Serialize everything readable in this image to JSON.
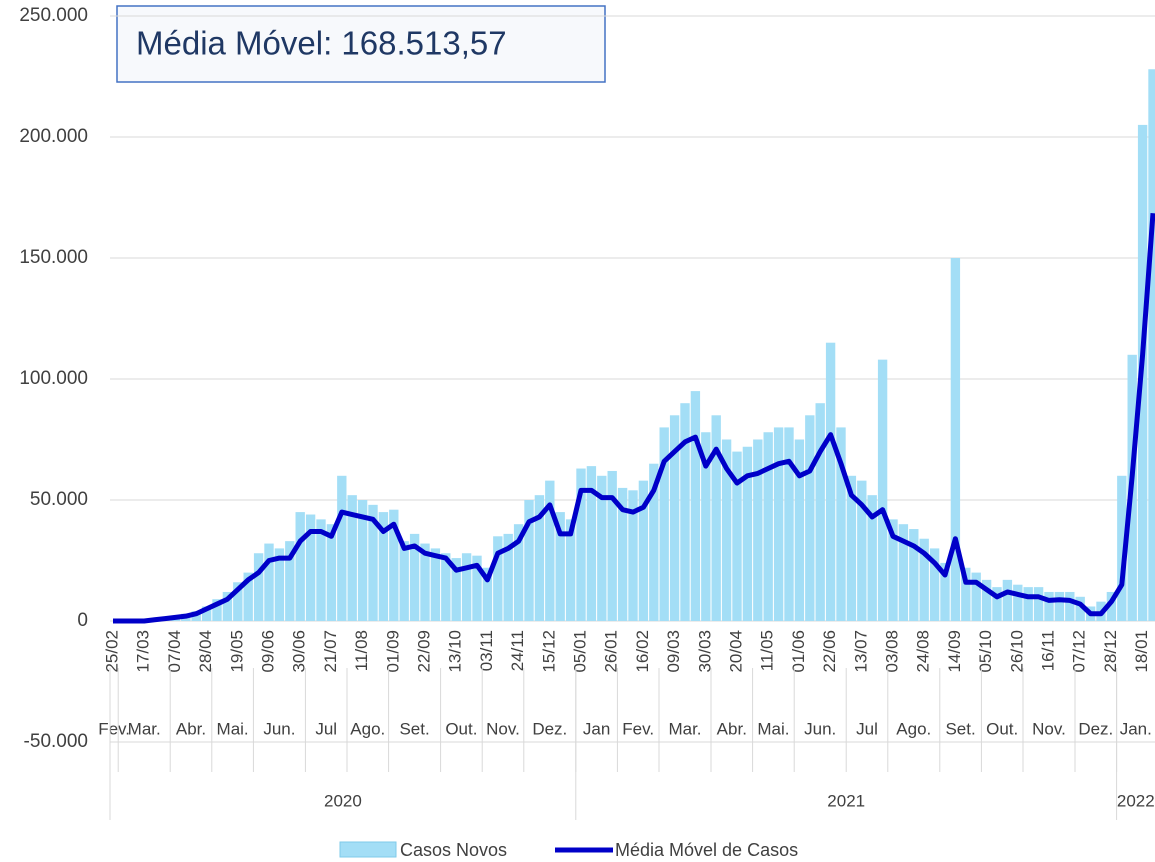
{
  "chart_data": {
    "type": "bar_line",
    "annotation": "Média Móvel: 168.513,57",
    "ylim": [
      -50000,
      250000
    ],
    "yticks": [
      {
        "value": -50000,
        "label": "-50.000"
      },
      0,
      {
        "value": 50000,
        "label": "50.000"
      },
      {
        "value": 100000,
        "label": "100.000"
      },
      {
        "value": 150000,
        "label": "150.000"
      },
      {
        "value": 200000,
        "label": "200.000"
      },
      {
        "value": 250000,
        "label": "250.000"
      }
    ],
    "grid": true,
    "categories": [
      "25/02",
      null,
      null,
      "17/03",
      null,
      null,
      "07/04",
      null,
      null,
      "28/04",
      null,
      null,
      "19/05",
      null,
      null,
      "09/06",
      null,
      null,
      "30/06",
      null,
      null,
      "21/07",
      null,
      null,
      "11/08",
      null,
      null,
      "01/09",
      null,
      null,
      "22/09",
      null,
      null,
      "13/10",
      null,
      null,
      "03/11",
      null,
      null,
      "24/11",
      null,
      null,
      "15/12",
      null,
      null,
      "05/01",
      null,
      null,
      "26/01",
      null,
      null,
      "16/02",
      null,
      null,
      "09/03",
      null,
      null,
      "30/03",
      null,
      null,
      "20/04",
      null,
      null,
      "11/05",
      null,
      null,
      "01/06",
      null,
      null,
      "22/06",
      null,
      null,
      "13/07",
      null,
      null,
      "03/08",
      null,
      null,
      "24/08",
      null,
      null,
      "14/09",
      null,
      null,
      "05/10",
      null,
      null,
      "26/10",
      null,
      null,
      "16/11",
      null,
      null,
      "07/12",
      null,
      null,
      "28/12",
      null,
      null,
      "18/01",
      null
    ],
    "months": [
      "Fev.",
      "Mar.",
      "Mar.",
      "Mar.",
      "Mar.",
      "Mar.",
      "Abr.",
      "Abr.",
      "Abr.",
      "Abr.",
      "Mai.",
      "Mai.",
      "Mai.",
      "Mai.",
      "Jun.",
      "Jun.",
      "Jun.",
      "Jun.",
      "Jun.",
      "Jul",
      "Jul",
      "Jul",
      "Jul",
      "Ago.",
      "Ago.",
      "Ago.",
      "Ago.",
      "Set.",
      "Set.",
      "Set.",
      "Set.",
      "Set.",
      "Out.",
      "Out.",
      "Out.",
      "Out.",
      "Nov.",
      "Nov.",
      "Nov.",
      "Nov.",
      "Dez.",
      "Dez.",
      "Dez.",
      "Dez.",
      "Dez.",
      "Jan",
      "Jan",
      "Jan",
      "Jan",
      "Fev.",
      "Fev.",
      "Fev.",
      "Fev.",
      "Mar.",
      "Mar.",
      "Mar.",
      "Mar.",
      "Mar.",
      "Abr.",
      "Abr.",
      "Abr.",
      "Abr.",
      "Mai.",
      "Mai.",
      "Mai.",
      "Mai.",
      "Jun.",
      "Jun.",
      "Jun.",
      "Jun.",
      "Jun.",
      "Jul",
      "Jul",
      "Jul",
      "Jul",
      "Ago.",
      "Ago.",
      "Ago.",
      "Ago.",
      "Ago.",
      "Set.",
      "Set.",
      "Set.",
      "Set.",
      "Out.",
      "Out.",
      "Out.",
      "Out.",
      "Nov.",
      "Nov.",
      "Nov.",
      "Nov.",
      "Nov.",
      "Dez.",
      "Dez.",
      "Dez.",
      "Dez.",
      "Jan.",
      "Jan.",
      "Jan.",
      "Jan."
    ],
    "years": [
      "2020",
      "2020",
      "2020",
      "2020",
      "2020",
      "2020",
      "2020",
      "2020",
      "2020",
      "2020",
      "2020",
      "2020",
      "2020",
      "2020",
      "2020",
      "2020",
      "2020",
      "2020",
      "2020",
      "2020",
      "2020",
      "2020",
      "2020",
      "2020",
      "2020",
      "2020",
      "2020",
      "2020",
      "2020",
      "2020",
      "2020",
      "2020",
      "2020",
      "2020",
      "2020",
      "2020",
      "2020",
      "2020",
      "2020",
      "2020",
      "2020",
      "2020",
      "2020",
      "2020",
      "2020",
      "2021",
      "2021",
      "2021",
      "2021",
      "2021",
      "2021",
      "2021",
      "2021",
      "2021",
      "2021",
      "2021",
      "2021",
      "2021",
      "2021",
      "2021",
      "2021",
      "2021",
      "2021",
      "2021",
      "2021",
      "2021",
      "2021",
      "2021",
      "2021",
      "2021",
      "2021",
      "2021",
      "2021",
      "2021",
      "2021",
      "2021",
      "2021",
      "2021",
      "2021",
      "2021",
      "2021",
      "2021",
      "2021",
      "2021",
      "2021",
      "2021",
      "2021",
      "2021",
      "2021",
      "2021",
      "2021",
      "2021",
      "2021",
      "2021",
      "2021",
      "2021",
      "2021",
      "2022",
      "2022",
      "2022",
      "2022"
    ],
    "series": [
      {
        "name": "Casos Novos",
        "type": "bar",
        "color": "#a3def6",
        "values": [
          0,
          0,
          200,
          500,
          1200,
          1500,
          2000,
          3000,
          4000,
          6000,
          9000,
          12000,
          16000,
          20000,
          28000,
          32000,
          30000,
          33000,
          45000,
          44000,
          42000,
          40000,
          60000,
          52000,
          50000,
          48000,
          45000,
          46000,
          33000,
          36000,
          32000,
          30000,
          28000,
          26000,
          28000,
          27000,
          22000,
          35000,
          36000,
          40000,
          50000,
          52000,
          58000,
          45000,
          42000,
          63000,
          64000,
          60000,
          62000,
          55000,
          54000,
          58000,
          65000,
          80000,
          85000,
          90000,
          95000,
          78000,
          85000,
          75000,
          70000,
          72000,
          75000,
          78000,
          80000,
          80000,
          75000,
          85000,
          90000,
          115000,
          80000,
          60000,
          58000,
          52000,
          108000,
          42000,
          40000,
          38000,
          34000,
          30000,
          24000,
          150000,
          22000,
          20000,
          17000,
          14000,
          17000,
          15000,
          14000,
          14000,
          12000,
          12000,
          12000,
          10000,
          6000,
          8000,
          12000,
          60000,
          110000,
          205000,
          228000
        ]
      },
      {
        "name": "Média Móvel de Casos",
        "type": "line",
        "color": "#0000c8",
        "values": [
          0,
          0,
          0,
          0,
          500,
          1000,
          1500,
          2000,
          3000,
          5000,
          7000,
          9000,
          13000,
          17000,
          20000,
          25000,
          26000,
          26000,
          33000,
          37000,
          37000,
          35000,
          45000,
          44000,
          43000,
          42000,
          37000,
          40000,
          30000,
          31000,
          28000,
          27000,
          26000,
          21000,
          22000,
          23000,
          17000,
          28000,
          30000,
          33000,
          41000,
          43000,
          48000,
          36000,
          36000,
          54000,
          54000,
          51000,
          51000,
          46000,
          45000,
          47000,
          54000,
          66000,
          70000,
          74000,
          76000,
          64000,
          71000,
          63000,
          57000,
          60000,
          61000,
          63000,
          65000,
          66000,
          60000,
          62000,
          70000,
          77000,
          65000,
          52000,
          48000,
          43000,
          46000,
          35000,
          33000,
          31000,
          28000,
          24000,
          19000,
          34000,
          16000,
          16000,
          13000,
          10000,
          12000,
          11000,
          10000,
          10000,
          8500,
          8800,
          8500,
          7000,
          3000,
          3000,
          8000,
          15000,
          60000,
          110000,
          168514
        ]
      }
    ]
  }
}
